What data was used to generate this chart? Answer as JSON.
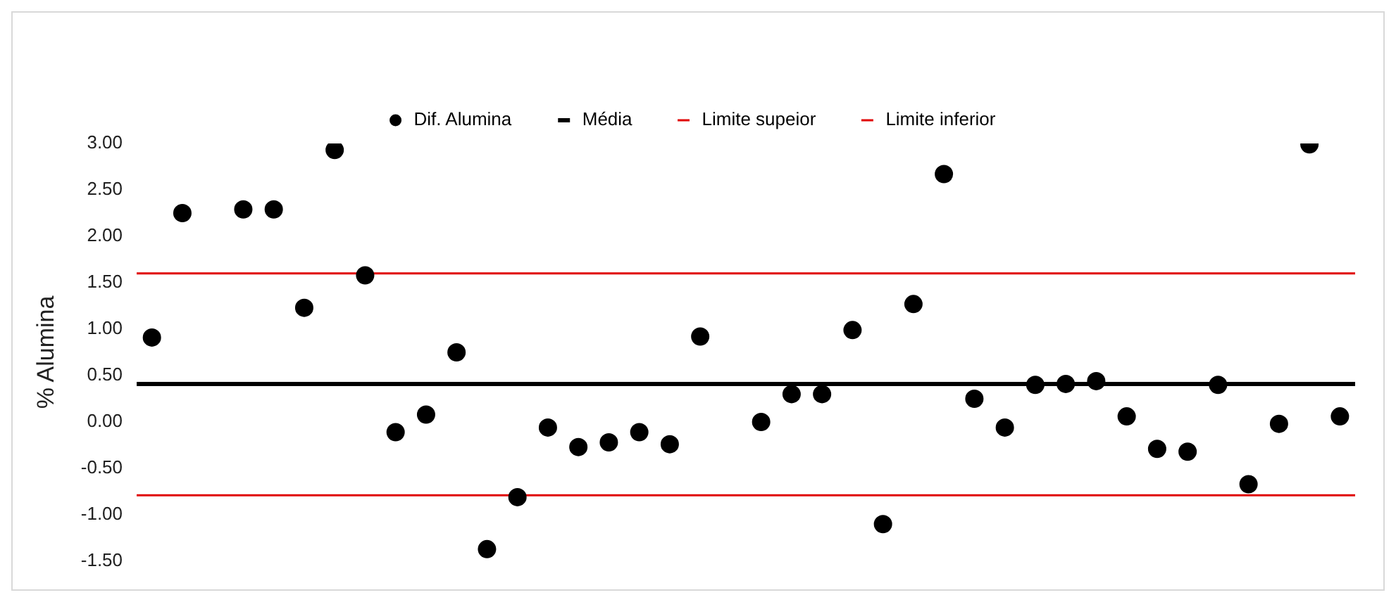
{
  "chart_data": {
    "type": "scatter",
    "ylabel": "% Alumina",
    "categories": [
      null,
      null,
      null,
      null,
      null,
      null,
      null,
      null,
      null,
      null,
      null,
      null,
      null,
      null,
      null,
      null,
      null,
      null,
      null,
      null,
      null,
      null,
      null,
      null,
      null,
      null,
      null,
      null,
      null,
      null,
      null,
      null,
      null,
      null,
      null,
      null,
      null,
      null,
      null,
      null
    ],
    "series": [
      {
        "name": "Dif. Alumina",
        "color": "#000000",
        "values": [
          0.91,
          2.25,
          null,
          2.29,
          2.29,
          1.23,
          2.93,
          1.58,
          -0.11,
          0.08,
          0.75,
          -1.37,
          -0.81,
          -0.06,
          -0.27,
          -0.22,
          -0.11,
          -0.24,
          0.92,
          null,
          0.0,
          0.3,
          0.3,
          0.99,
          -1.1,
          1.27,
          2.67,
          0.25,
          -0.06,
          0.4,
          0.41,
          0.44,
          0.06,
          -0.29,
          -0.32,
          0.4,
          -0.67,
          -0.02,
          2.99,
          0.06
        ]
      }
    ],
    "ref_lines": [
      {
        "axis": "y",
        "value": 0.41,
        "label": "Média",
        "color": "#000000"
      },
      {
        "axis": "y",
        "value": 1.6,
        "label": "Limite supeior",
        "color": "#e00000"
      },
      {
        "axis": "y",
        "value": -0.79,
        "label": "Limite inferior",
        "color": "#e00000"
      }
    ],
    "ylim": [
      -1.5,
      3.0
    ],
    "yticks": [
      {
        "value": -1.5,
        "label": "-1.50"
      },
      {
        "value": -1.0,
        "label": "-1.00"
      },
      {
        "value": -0.5,
        "label": "-0.50"
      },
      {
        "value": 0,
        "label": "0.00"
      },
      {
        "value": 0.5,
        "label": "0.50"
      },
      {
        "value": 1.0,
        "label": "1.00"
      },
      {
        "value": 1.5,
        "label": "1.50"
      },
      {
        "value": 2.0,
        "label": "2.00"
      },
      {
        "value": 2.5,
        "label": "2.50"
      },
      {
        "value": 3.0,
        "label": "3.00"
      }
    ],
    "grid": false,
    "legend": "top",
    "marker": "circle",
    "tick_labels": "y"
  }
}
